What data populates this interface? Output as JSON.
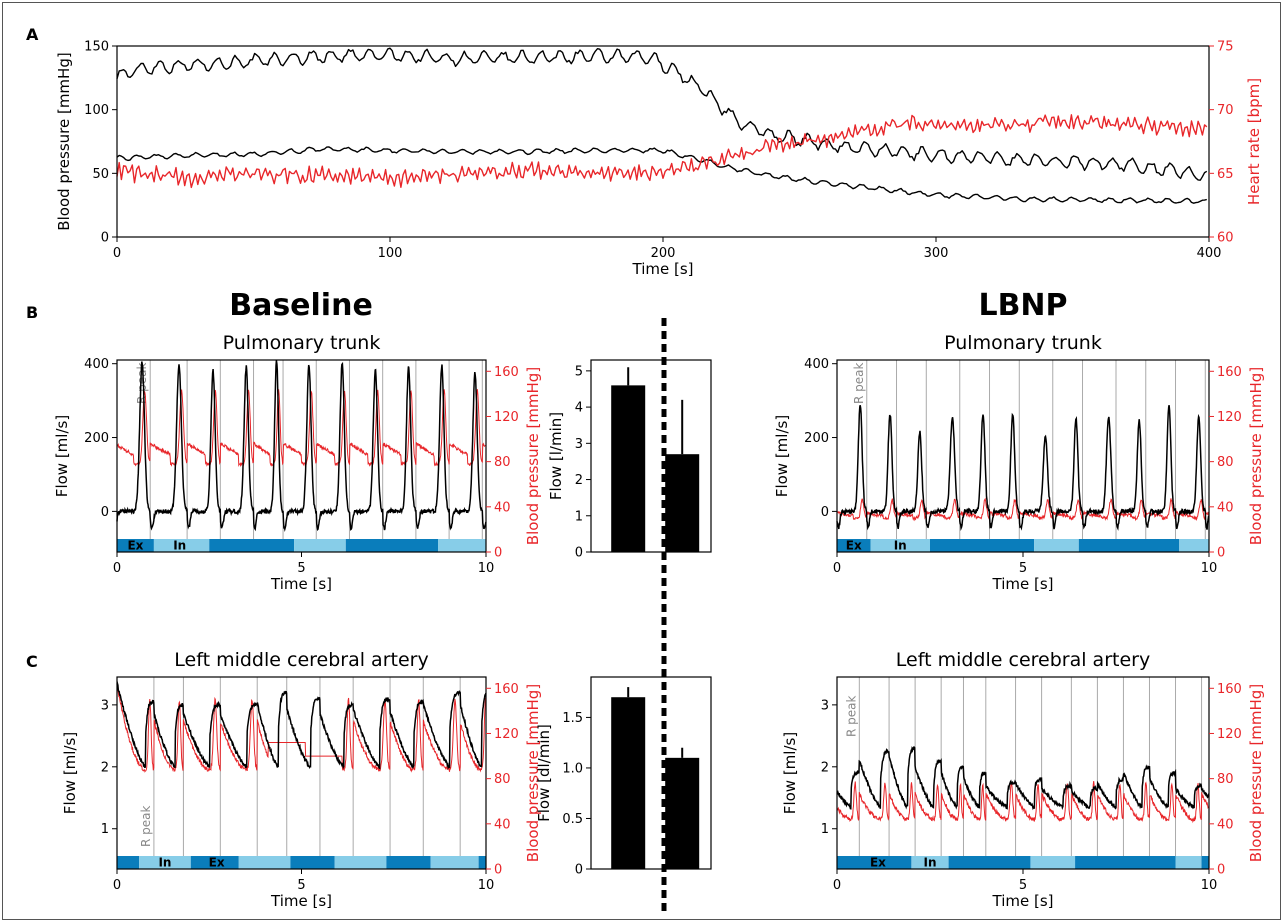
{
  "panel_labels": {
    "a": "A",
    "b": "B",
    "c": "C"
  },
  "headers": {
    "baseline": "Baseline",
    "lbnp": "LBNP"
  },
  "titles": {
    "b_left": "Pulmonary trunk",
    "b_right": "Pulmonary trunk",
    "c_left": "Left middle cerebral artery",
    "c_right": "Left middle cerebral artery"
  },
  "annotations": {
    "r_peak": "R peak",
    "ex": "Ex",
    "in": "In"
  },
  "colors": {
    "black": "#000000",
    "red": "#e8262a",
    "dark_blue": "#0a7dbb",
    "light_blue": "#87cde8",
    "gray_line": "#aaaaaa"
  },
  "chart_data": [
    {
      "id": "A",
      "type": "line",
      "xlabel": "Time [s]",
      "ylabel": "Blood pressure [mmHg]",
      "ylabel_right": "Heart rate [bpm]",
      "xlim": [
        0,
        400
      ],
      "ylim": [
        0,
        150
      ],
      "ylim_right": [
        60,
        75
      ],
      "xticks": [
        0,
        100,
        200,
        300,
        400
      ],
      "yticks": [
        0,
        50,
        100,
        150
      ],
      "yticks_right": [
        60,
        65,
        70,
        75
      ],
      "series": [
        {
          "axis": "left",
          "color": "#000000",
          "x": [
            0,
            10,
            25,
            50,
            75,
            100,
            125,
            150,
            175,
            195,
            205,
            215,
            220,
            228,
            240,
            255,
            270,
            290,
            310,
            340,
            370,
            400
          ],
          "values": [
            126,
            133,
            135,
            138,
            142,
            143,
            140,
            141,
            142,
            141,
            130,
            115,
            105,
            90,
            80,
            75,
            70,
            66,
            63,
            60,
            57,
            48
          ]
        },
        {
          "axis": "left",
          "color": "#000000",
          "x": [
            0,
            25,
            50,
            75,
            100,
            125,
            150,
            175,
            200,
            215,
            225,
            235,
            250,
            270,
            300,
            330,
            360,
            400
          ],
          "values": [
            62,
            64,
            65,
            69,
            68,
            67,
            67,
            68,
            68,
            60,
            54,
            50,
            45,
            40,
            33,
            30,
            29,
            28
          ]
        },
        {
          "axis": "right",
          "color": "#e8262a",
          "x": [
            0,
            25,
            50,
            75,
            100,
            125,
            150,
            175,
            200,
            215,
            225,
            240,
            255,
            270,
            290,
            310,
            330,
            350,
            370,
            400
          ],
          "values": [
            65.2,
            64.6,
            65.0,
            64.8,
            64.6,
            64.9,
            65.2,
            65.0,
            65.1,
            65.7,
            66.3,
            67.2,
            67.6,
            68.2,
            69.0,
            68.6,
            68.9,
            69.1,
            68.7,
            68.5
          ]
        }
      ]
    },
    {
      "id": "B-baseline",
      "type": "line",
      "title": "Pulmonary trunk",
      "xlabel": "Time [s]",
      "ylabel": "Flow [ml/s]",
      "ylabel_right": "Blood pressure [mmHg]",
      "xlim": [
        0,
        10
      ],
      "ylim": [
        -110,
        410
      ],
      "ylim_right": [
        0,
        170
      ],
      "xticks": [
        0,
        5,
        10
      ],
      "yticks": [
        0,
        200,
        400
      ],
      "yticks_right": [
        0,
        40,
        80,
        120,
        160
      ],
      "r_peaks": [
        0.9,
        1.9,
        2.8,
        3.7,
        4.5,
        5.4,
        6.3,
        7.2,
        8.1,
        9.0,
        9.9
      ],
      "flow_peak_values": [
        405,
        395,
        380,
        390,
        410,
        395,
        400,
        385,
        390,
        395,
        375
      ],
      "bp_peak": 150,
      "bp_trough": 78,
      "resp": [
        {
          "x0": 0,
          "x1": 1.0,
          "phase": "ex"
        },
        {
          "x0": 1.0,
          "x1": 2.5,
          "phase": "in"
        },
        {
          "x0": 2.5,
          "x1": 4.8,
          "phase": "ex"
        },
        {
          "x0": 4.8,
          "x1": 6.2,
          "phase": "in"
        },
        {
          "x0": 6.2,
          "x1": 8.7,
          "phase": "ex"
        },
        {
          "x0": 8.7,
          "x1": 10,
          "phase": "in"
        }
      ],
      "resp_labels": [
        {
          "x": 0.5,
          "key": "ex"
        },
        {
          "x": 1.7,
          "key": "in"
        }
      ]
    },
    {
      "id": "B-bar",
      "type": "bar",
      "ylabel": "Flow [l/min]",
      "categories": [
        "Baseline",
        "LBNP"
      ],
      "values": [
        4.6,
        2.7
      ],
      "errors": [
        0.5,
        1.5
      ],
      "ylim": [
        0,
        5.3
      ],
      "yticks": [
        0,
        1,
        2,
        3,
        4,
        5
      ]
    },
    {
      "id": "B-lbnp",
      "type": "line",
      "title": "Pulmonary trunk",
      "xlabel": "Time [s]",
      "ylabel": "Flow [ml/s]",
      "ylabel_right": "Blood pressure [mmHg]",
      "xlim": [
        0,
        10
      ],
      "ylim": [
        -110,
        410
      ],
      "ylim_right": [
        0,
        170
      ],
      "xticks": [
        0,
        5,
        10
      ],
      "yticks": [
        0,
        200,
        400
      ],
      "yticks_right": [
        0,
        40,
        80,
        120,
        160
      ],
      "r_peaks": [
        0.8,
        1.6,
        2.4,
        3.3,
        4.1,
        4.9,
        5.8,
        6.6,
        7.5,
        8.3,
        9.1,
        9.9
      ],
      "flow_peak_values": [
        290,
        265,
        215,
        255,
        265,
        265,
        200,
        250,
        255,
        245,
        285,
        260
      ],
      "bp_peak": 48,
      "bp_trough": 30,
      "resp": [
        {
          "x0": 0,
          "x1": 0.9,
          "phase": "ex"
        },
        {
          "x0": 0.9,
          "x1": 2.5,
          "phase": "in"
        },
        {
          "x0": 2.5,
          "x1": 5.3,
          "phase": "ex"
        },
        {
          "x0": 5.3,
          "x1": 6.5,
          "phase": "in"
        },
        {
          "x0": 6.5,
          "x1": 9.2,
          "phase": "ex"
        },
        {
          "x0": 9.2,
          "x1": 10,
          "phase": "in"
        }
      ],
      "resp_labels": [
        {
          "x": 0.45,
          "key": "ex"
        },
        {
          "x": 1.7,
          "key": "in"
        }
      ]
    },
    {
      "id": "C-baseline",
      "type": "line",
      "title": "Left middle cerebral artery",
      "xlabel": "Time [s]",
      "ylabel": "Flow [ml/s]",
      "ylabel_right": "Blood pressure [mmHg]",
      "xlim": [
        0,
        10
      ],
      "ylim": [
        0.35,
        3.45
      ],
      "ylim_right": [
        0,
        170
      ],
      "xticks": [
        0,
        5,
        10
      ],
      "yticks": [
        1,
        2,
        3
      ],
      "yticks_right": [
        0,
        40,
        80,
        120,
        160
      ],
      "r_peaks": [
        1.0,
        1.8,
        2.8,
        3.8,
        4.6,
        5.5,
        6.4,
        7.4,
        8.3,
        9.3
      ],
      "flow_peak_values": [
        3.05,
        3.0,
        3.0,
        3.0,
        3.2,
        3.1,
        3.0,
        3.1,
        3.05,
        3.2
      ],
      "flow_trough": 2.0,
      "bp_peak": 150,
      "bp_trough": 88,
      "bp_flat": {
        "x0": 4.1,
        "x1": 6.1,
        "v0": 112,
        "v1": 100
      },
      "resp": [
        {
          "x0": 0,
          "x1": 0.6,
          "phase": "ex"
        },
        {
          "x0": 0.6,
          "x1": 2.0,
          "phase": "in"
        },
        {
          "x0": 2.0,
          "x1": 3.3,
          "phase": "ex"
        },
        {
          "x0": 3.3,
          "x1": 4.7,
          "phase": "in"
        },
        {
          "x0": 4.7,
          "x1": 5.9,
          "phase": "ex"
        },
        {
          "x0": 5.9,
          "x1": 7.3,
          "phase": "in"
        },
        {
          "x0": 7.3,
          "x1": 8.5,
          "phase": "ex"
        },
        {
          "x0": 8.5,
          "x1": 9.8,
          "phase": "in"
        },
        {
          "x0": 9.8,
          "x1": 10,
          "phase": "ex"
        }
      ],
      "resp_labels": [
        {
          "x": 1.3,
          "key": "in"
        },
        {
          "x": 2.7,
          "key": "ex"
        }
      ]
    },
    {
      "id": "C-bar",
      "type": "bar",
      "ylabel": "Flow [dl/min]",
      "categories": [
        "Baseline",
        "LBNP"
      ],
      "values": [
        1.7,
        1.1
      ],
      "errors": [
        0.1,
        0.1
      ],
      "ylim": [
        0,
        1.9
      ],
      "yticks": [
        0,
        0.5,
        1.0,
        1.5
      ],
      "ytick_labels": [
        "0",
        "0.5",
        "1.0",
        "1.5"
      ]
    },
    {
      "id": "C-lbnp",
      "type": "line",
      "title": "Left middle cerebral artery",
      "xlabel": "Time [s]",
      "ylabel": "Flow [ml/s]",
      "ylabel_right": "Blood pressure [mmHg]",
      "xlim": [
        0,
        10
      ],
      "ylim": [
        0.35,
        3.45
      ],
      "ylim_right": [
        0,
        170
      ],
      "xticks": [
        0,
        5,
        10
      ],
      "yticks": [
        1,
        2,
        3
      ],
      "yticks_right": [
        0,
        40,
        80,
        120,
        160
      ],
      "r_peaks": [
        0.6,
        1.4,
        2.1,
        2.8,
        3.4,
        4.0,
        4.8,
        5.5,
        6.3,
        7.0,
        7.7,
        8.4,
        9.1,
        9.8
      ],
      "flow_peak_values": [
        1.9,
        2.25,
        2.3,
        2.1,
        2.0,
        1.9,
        1.75,
        1.8,
        1.7,
        1.65,
        1.8,
        2.0,
        1.9,
        1.7
      ],
      "flow_trough": 1.35,
      "bp_peak": 76,
      "bp_trough": 44,
      "resp": [
        {
          "x0": 0,
          "x1": 2.0,
          "phase": "ex"
        },
        {
          "x0": 2.0,
          "x1": 3.0,
          "phase": "in"
        },
        {
          "x0": 3.0,
          "x1": 5.2,
          "phase": "ex"
        },
        {
          "x0": 5.2,
          "x1": 6.4,
          "phase": "in"
        },
        {
          "x0": 6.4,
          "x1": 9.1,
          "phase": "ex"
        },
        {
          "x0": 9.1,
          "x1": 9.8,
          "phase": "in"
        },
        {
          "x0": 9.8,
          "x1": 10,
          "phase": "ex"
        }
      ],
      "resp_labels": [
        {
          "x": 1.1,
          "key": "ex"
        },
        {
          "x": 2.5,
          "key": "in"
        }
      ]
    }
  ]
}
